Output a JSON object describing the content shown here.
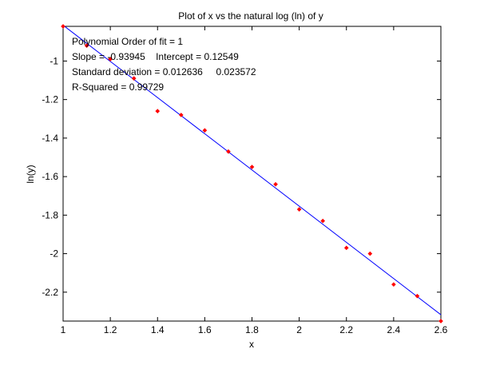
{
  "chart_data": {
    "type": "scatter",
    "title": "Plot of x vs the natural log (ln) of y",
    "xlabel": "x",
    "ylabel": "ln(y)",
    "xlim": [
      1,
      2.6
    ],
    "ylim": [
      -2.35,
      -0.82
    ],
    "xticks": [
      "1",
      "1.2",
      "1.4",
      "1.6",
      "1.8",
      "2",
      "2.2",
      "2.4",
      "2.6"
    ],
    "yticks": [
      "-1",
      "-1.2",
      "-1.4",
      "-1.6",
      "-1.8",
      "-2",
      "-2.2"
    ],
    "xtick_values": [
      1,
      1.2,
      1.4,
      1.6,
      1.8,
      2,
      2.2,
      2.4,
      2.6
    ],
    "ytick_values": [
      -1,
      -1.2,
      -1.4,
      -1.6,
      -1.8,
      -2,
      -2.2
    ],
    "points": {
      "x": [
        1.0,
        1.1,
        1.2,
        1.3,
        1.4,
        1.5,
        1.6,
        1.7,
        1.8,
        1.9,
        2.0,
        2.1,
        2.2,
        2.3,
        2.4,
        2.5,
        2.6
      ],
      "y": [
        -0.82,
        -0.92,
        -0.99,
        -1.09,
        -1.26,
        -1.28,
        -1.36,
        -1.47,
        -1.55,
        -1.64,
        -1.77,
        -1.83,
        -1.97,
        -2.0,
        -2.16,
        -2.22,
        -2.35
      ],
      "color": "#ff0000"
    },
    "fit_line": {
      "slope": -0.93945,
      "intercept": 0.12549,
      "x_range": [
        1,
        2.6
      ],
      "color": "#0000ff"
    },
    "annotations": [
      "Polynomial Order of fit = 1",
      "Slope = -0.93945    Intercept = 0.12549",
      "Standard deviation = 0.012636     0.023572",
      "R-Squared = 0.99729"
    ],
    "grid": false
  }
}
